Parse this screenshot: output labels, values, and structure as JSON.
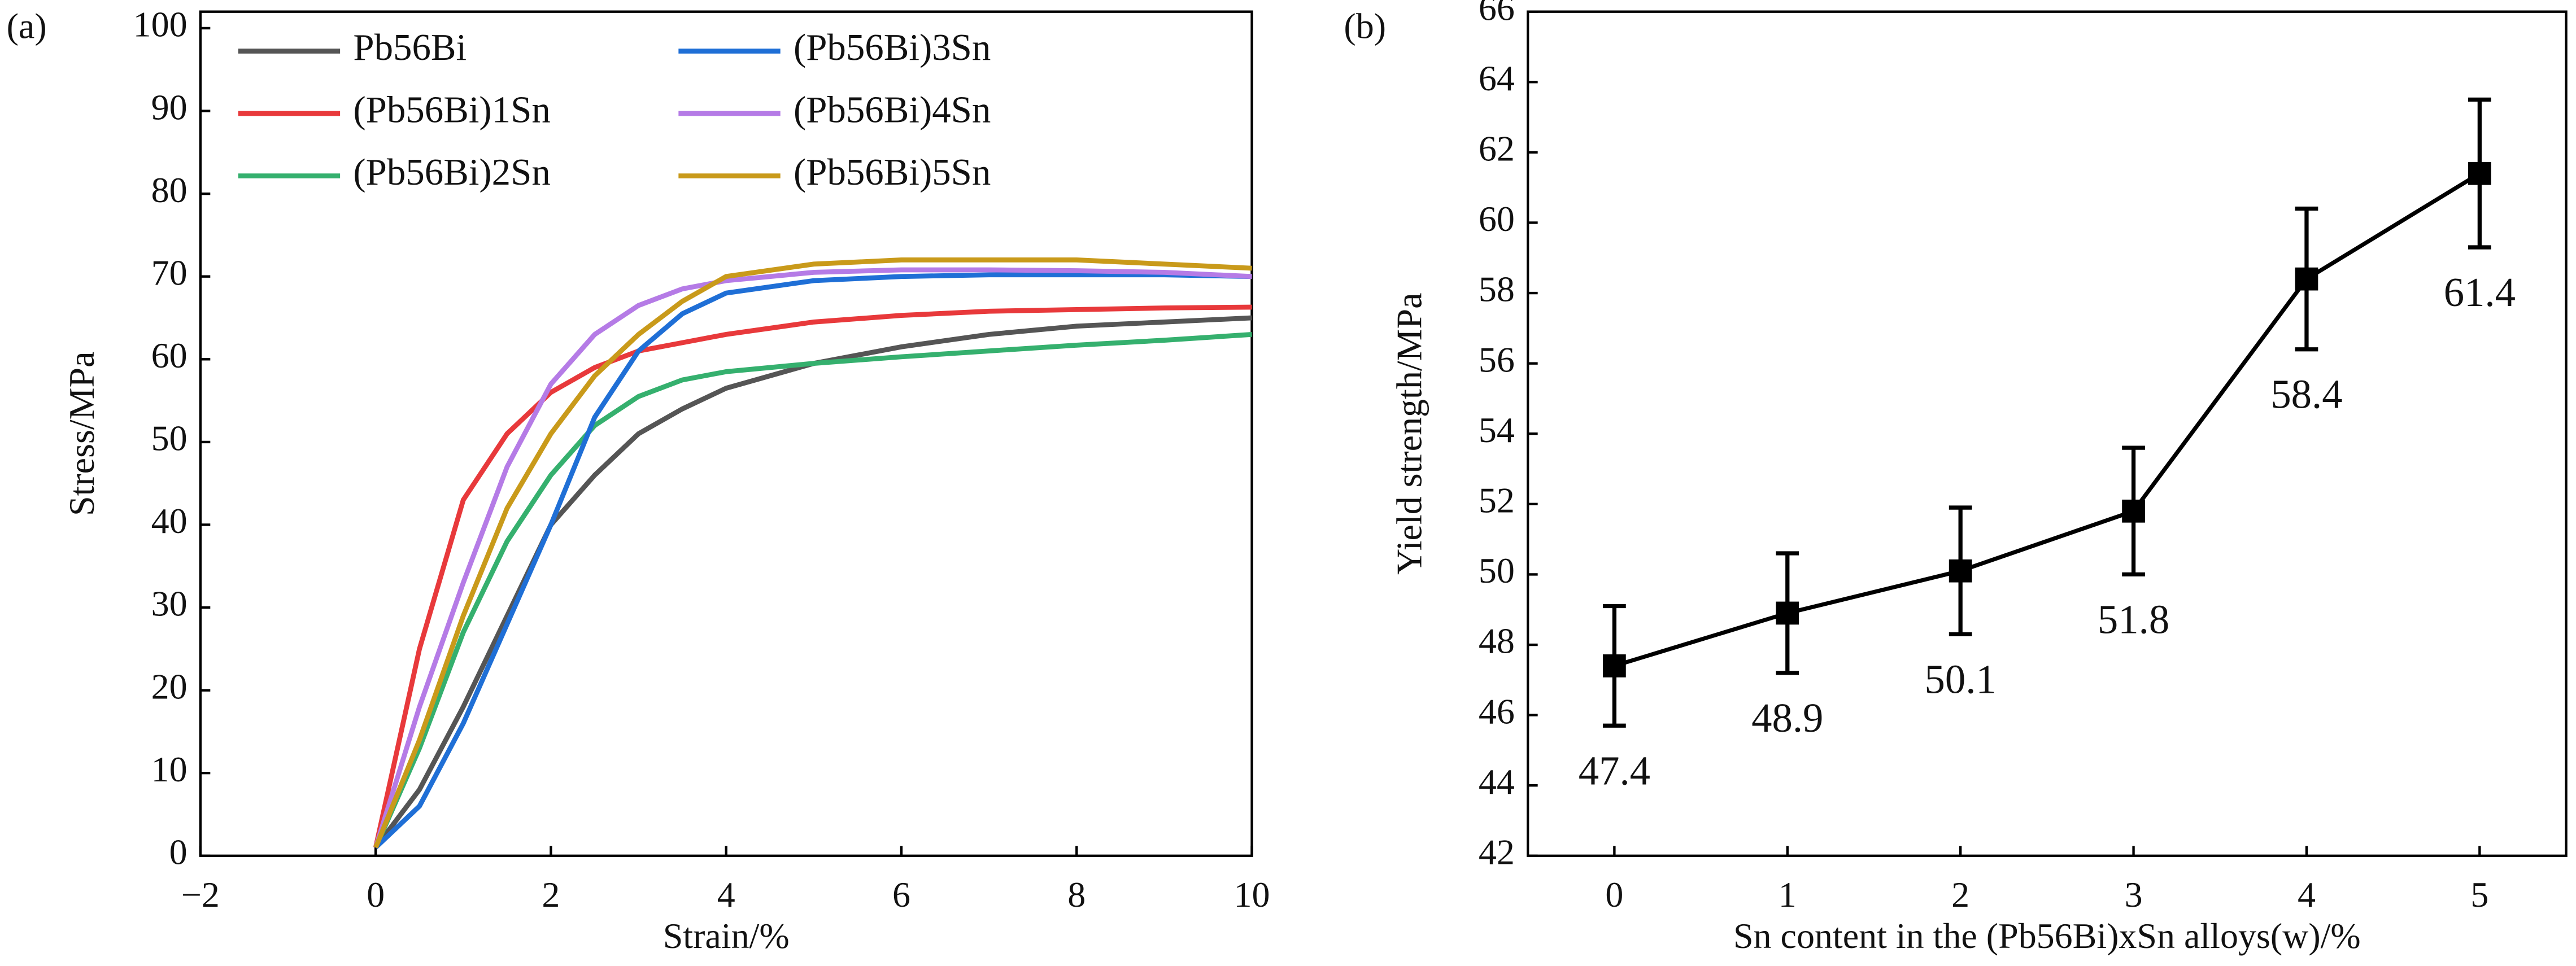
{
  "chart_data": [
    {
      "type": "line",
      "label": "(a)",
      "xlabel": "Strain/%",
      "ylabel": "Stress/MPa",
      "xlim": [
        -2,
        10
      ],
      "xticks": [
        {
          "value": -2,
          "label": "−2"
        },
        0,
        2,
        4,
        6,
        8,
        10
      ],
      "ylim": [
        0,
        102
      ],
      "yticks": [
        0,
        10,
        20,
        30,
        40,
        50,
        60,
        70,
        80,
        90,
        100
      ],
      "legend": "upper left",
      "x": [
        0,
        0.5,
        1,
        1.5,
        2,
        2.5,
        3,
        3.5,
        4,
        5,
        6,
        7,
        8,
        9,
        10
      ],
      "series": [
        {
          "name": "Pb56Bi",
          "color": "#555555",
          "values": [
            1,
            8,
            18,
            29,
            40,
            46,
            51,
            54,
            56.5,
            59.5,
            61.5,
            63,
            64,
            64.5,
            65
          ]
        },
        {
          "name": "(Pb56Bi)1Sn",
          "color": "#e8393b",
          "values": [
            1,
            25,
            43,
            51,
            56,
            59,
            61,
            62,
            63,
            64.5,
            65.3,
            65.8,
            66,
            66.2,
            66.3
          ]
        },
        {
          "name": "(Pb56Bi)2Sn",
          "color": "#35b06e",
          "values": [
            1,
            13,
            27,
            38,
            46,
            52,
            55.5,
            57.5,
            58.5,
            59.5,
            60.3,
            61,
            61.7,
            62.3,
            63
          ]
        },
        {
          "name": "(Pb56Bi)3Sn",
          "color": "#1f6fd6",
          "values": [
            1,
            6,
            16,
            28,
            40,
            53,
            61,
            65.5,
            68,
            69.5,
            70,
            70.2,
            70.2,
            70.2,
            70
          ]
        },
        {
          "name": "(Pb56Bi)4Sn",
          "color": "#b57be6",
          "values": [
            1,
            18,
            33,
            47,
            57,
            63,
            66.5,
            68.5,
            69.5,
            70.5,
            70.8,
            70.8,
            70.7,
            70.5,
            70
          ]
        },
        {
          "name": "(Pb56Bi)5Sn",
          "color": "#c99a1a",
          "values": [
            1,
            14,
            29,
            42,
            51,
            58,
            63,
            67,
            70,
            71.5,
            72,
            72,
            72,
            71.5,
            71
          ]
        }
      ]
    },
    {
      "type": "line",
      "label": "(b)",
      "xlabel": "Sn content in the (Pb56Bi)xSn alloys(w)/%",
      "ylabel": "Yield strength/MPa",
      "xlim": [
        -0.5,
        5.5
      ],
      "xticks": [
        0,
        1,
        2,
        3,
        4,
        5
      ],
      "ylim": [
        42,
        66
      ],
      "yticks": [
        42,
        44,
        46,
        48,
        50,
        52,
        54,
        56,
        58,
        60,
        62,
        64,
        66
      ],
      "x": [
        0,
        1,
        2,
        3,
        4,
        5
      ],
      "series": [
        {
          "color": "#000000",
          "values": [
            47.4,
            48.9,
            50.1,
            51.8,
            58.4,
            61.4
          ],
          "errors": [
            1.7,
            1.7,
            1.8,
            1.8,
            2.0,
            2.1
          ]
        }
      ]
    }
  ]
}
